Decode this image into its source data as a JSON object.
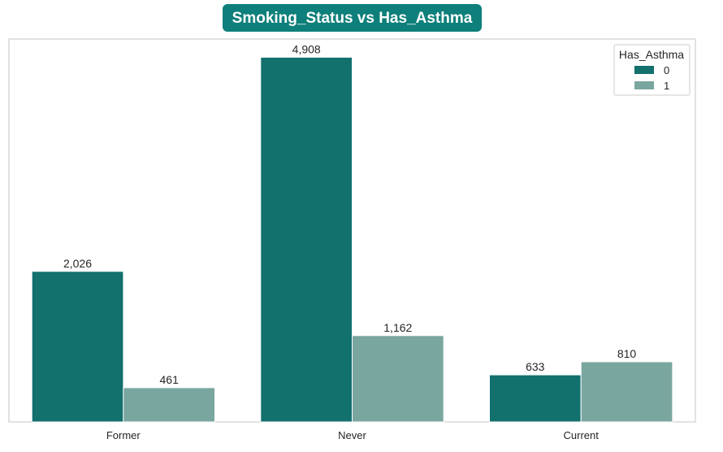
{
  "chart_data": {
    "type": "bar",
    "title": "Smoking_Status vs Has_Asthma",
    "xlabel": "",
    "ylabel": "",
    "categories": [
      "Former",
      "Never",
      "Current"
    ],
    "series": [
      {
        "name": "0",
        "values": [
          2026,
          4908,
          633
        ],
        "value_labels": [
          "2,026",
          "4,908",
          "633"
        ],
        "color": "#12706d"
      },
      {
        "name": "1",
        "values": [
          461,
          1162,
          810
        ],
        "value_labels": [
          "461",
          "1,162",
          "810"
        ],
        "color": "#7aa6a0"
      }
    ],
    "ylim": [
      0,
      5153
    ],
    "grid": false,
    "legend": {
      "title": "Has_Asthma",
      "position": "top-right"
    },
    "colors": {
      "title_background": "#0e7f7a",
      "title_text": "#ffffff"
    }
  }
}
